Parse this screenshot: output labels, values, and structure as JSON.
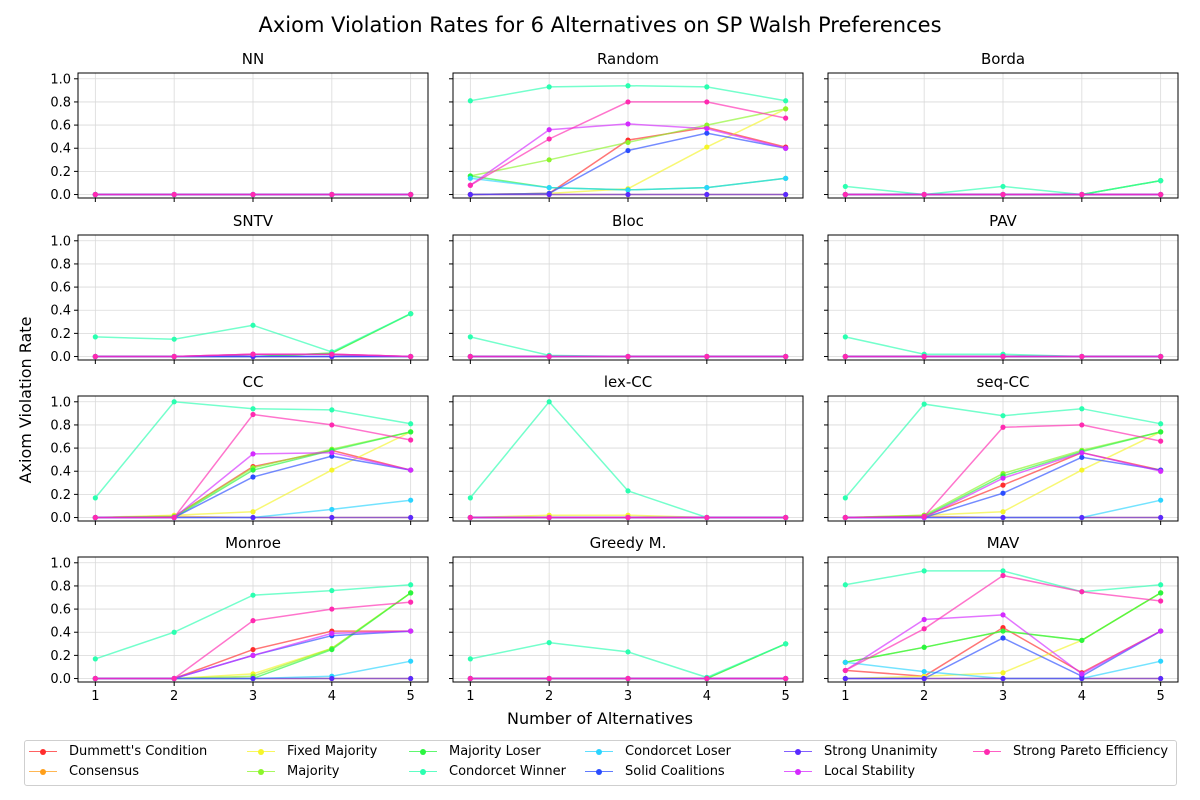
{
  "chart_data": {
    "type": "line",
    "title": "Axiom Violation Rates for 6 Alternatives on SP Walsh Preferences",
    "xlabel": "Number of Alternatives",
    "ylabel": "Axiom Violation Rate",
    "x": [
      1,
      2,
      3,
      4,
      5
    ],
    "xticks": [
      "1",
      "2",
      "3",
      "4",
      "5"
    ],
    "yticks": [
      "0.0",
      "0.2",
      "0.4",
      "0.6",
      "0.8",
      "1.0"
    ],
    "ylim": [
      -0.03,
      1.05
    ],
    "grid": true,
    "legend_position": "bottom",
    "series_meta": [
      {
        "name": "Dummett's Condition",
        "color": "#ff2d2d"
      },
      {
        "name": "Consensus",
        "color": "#ff9f1a"
      },
      {
        "name": "Fixed Majority",
        "color": "#f5f52a"
      },
      {
        "name": "Majority",
        "color": "#8cf52a"
      },
      {
        "name": "Majority Loser",
        "color": "#2af540"
      },
      {
        "name": "Condorcet Winner",
        "color": "#2affb0"
      },
      {
        "name": "Condorcet Loser",
        "color": "#2ad4ff"
      },
      {
        "name": "Solid Coalitions",
        "color": "#2a4dff"
      },
      {
        "name": "Strong Unanimity",
        "color": "#5a2aff"
      },
      {
        "name": "Local Stability",
        "color": "#d42aff"
      },
      {
        "name": "Strong Pareto Efficiency",
        "color": "#ff2ab0"
      }
    ],
    "panels": [
      {
        "title": "NN",
        "series": [
          [
            0,
            0,
            0,
            0,
            0
          ],
          [
            0,
            0,
            0,
            0,
            0
          ],
          [
            0,
            0,
            0,
            0,
            0
          ],
          [
            0,
            0,
            0,
            0,
            0
          ],
          [
            0,
            0,
            0,
            0,
            0
          ],
          [
            0,
            0,
            0,
            0,
            0
          ],
          [
            0,
            0,
            0,
            0,
            0
          ],
          [
            0,
            0,
            0,
            0,
            0
          ],
          [
            0,
            0,
            0,
            0,
            0
          ],
          [
            0,
            0,
            0,
            0,
            0
          ],
          [
            0,
            0,
            0,
            0,
            0
          ]
        ]
      },
      {
        "title": "Random",
        "series": [
          [
            0,
            0.01,
            0.47,
            0.58,
            0.41
          ],
          [
            0,
            0,
            0,
            0,
            0
          ],
          [
            0,
            0.01,
            0.05,
            0.41,
            0.74
          ],
          [
            0.16,
            0.3,
            0.45,
            0.6,
            0.74
          ],
          [
            0.16,
            0.06,
            0.04,
            0.06,
            0.14
          ],
          [
            0.81,
            0.93,
            0.94,
            0.93,
            0.81
          ],
          [
            0.14,
            0.06,
            0.04,
            0.06,
            0.14
          ],
          [
            0,
            0.01,
            0.38,
            0.53,
            0.4
          ],
          [
            0,
            0,
            0,
            0,
            0
          ],
          [
            0.08,
            0.56,
            0.61,
            0.57,
            0.4
          ],
          [
            0.08,
            0.48,
            0.8,
            0.8,
            0.66
          ]
        ]
      },
      {
        "title": "Borda",
        "series": [
          [
            0,
            0,
            0,
            0,
            0
          ],
          [
            0,
            0,
            0,
            0,
            0
          ],
          [
            0,
            0,
            0,
            0,
            0
          ],
          [
            0,
            0,
            0,
            0,
            0.12
          ],
          [
            0,
            0,
            0,
            0,
            0.12
          ],
          [
            0.07,
            0,
            0.07,
            0,
            0.12
          ],
          [
            0,
            0,
            0,
            0,
            0
          ],
          [
            0,
            0,
            0,
            0,
            0
          ],
          [
            0,
            0,
            0,
            0,
            0
          ],
          [
            0,
            0,
            0,
            0,
            0
          ],
          [
            0,
            0,
            0,
            0,
            0
          ]
        ]
      },
      {
        "title": "SNTV",
        "series": [
          [
            0,
            0,
            0.02,
            0.02,
            0
          ],
          [
            0,
            0,
            0,
            0,
            0
          ],
          [
            0,
            0,
            0,
            0,
            0
          ],
          [
            0,
            0,
            0,
            0.03,
            0.37
          ],
          [
            0,
            0,
            0,
            0.03,
            0.37
          ],
          [
            0.17,
            0.15,
            0.27,
            0.04,
            0.37
          ],
          [
            0,
            0,
            0,
            0,
            0
          ],
          [
            0,
            0,
            0,
            0,
            0
          ],
          [
            0,
            0,
            0,
            0,
            0
          ],
          [
            0,
            0,
            0.02,
            0.02,
            0
          ],
          [
            0,
            0,
            0.02,
            0.02,
            0
          ]
        ]
      },
      {
        "title": "Bloc",
        "series": [
          [
            0,
            0,
            0,
            0,
            0
          ],
          [
            0,
            0,
            0,
            0,
            0
          ],
          [
            0,
            0,
            0,
            0,
            0
          ],
          [
            0,
            0,
            0,
            0,
            0
          ],
          [
            0,
            0,
            0,
            0,
            0
          ],
          [
            0.17,
            0.01,
            0,
            0,
            0
          ],
          [
            0,
            0,
            0,
            0,
            0
          ],
          [
            0,
            0,
            0,
            0,
            0
          ],
          [
            0,
            0,
            0,
            0,
            0
          ],
          [
            0,
            0,
            0,
            0,
            0
          ],
          [
            0,
            0,
            0,
            0,
            0
          ]
        ]
      },
      {
        "title": "PAV",
        "series": [
          [
            0,
            0,
            0,
            0,
            0
          ],
          [
            0,
            0,
            0,
            0,
            0
          ],
          [
            0,
            0,
            0,
            0,
            0
          ],
          [
            0,
            0,
            0,
            0,
            0
          ],
          [
            0,
            0,
            0,
            0,
            0
          ],
          [
            0.17,
            0.02,
            0.02,
            0,
            0
          ],
          [
            0,
            0,
            0,
            0,
            0
          ],
          [
            0,
            0,
            0,
            0,
            0
          ],
          [
            0,
            0,
            0,
            0,
            0
          ],
          [
            0,
            0,
            0,
            0,
            0
          ],
          [
            0,
            0,
            0,
            0,
            0
          ]
        ]
      },
      {
        "title": "CC",
        "series": [
          [
            0,
            0.01,
            0.44,
            0.58,
            0.41
          ],
          [
            0,
            0.01,
            0,
            0,
            0
          ],
          [
            0,
            0.02,
            0.05,
            0.41,
            0.74
          ],
          [
            0,
            0.01,
            0.43,
            0.59,
            0.74
          ],
          [
            0,
            0,
            0.41,
            0.58,
            0.74
          ],
          [
            0.17,
            1.0,
            0.94,
            0.93,
            0.81
          ],
          [
            0,
            0,
            0,
            0.07,
            0.15
          ],
          [
            0,
            0,
            0.35,
            0.53,
            0.41
          ],
          [
            0,
            0,
            0,
            0,
            0
          ],
          [
            0,
            0,
            0.55,
            0.56,
            0.41
          ],
          [
            0,
            0,
            0.89,
            0.8,
            0.67
          ]
        ]
      },
      {
        "title": "lex-CC",
        "series": [
          [
            0,
            0,
            0,
            0,
            0
          ],
          [
            0,
            0,
            0,
            0,
            0
          ],
          [
            0,
            0.02,
            0.02,
            0,
            0
          ],
          [
            0,
            0,
            0,
            0,
            0
          ],
          [
            0,
            0,
            0,
            0,
            0
          ],
          [
            0.17,
            1.0,
            0.23,
            0,
            0
          ],
          [
            0,
            0,
            0,
            0,
            0
          ],
          [
            0,
            0,
            0,
            0,
            0
          ],
          [
            0,
            0,
            0,
            0,
            0
          ],
          [
            0,
            0,
            0,
            0,
            0
          ],
          [
            0,
            0,
            0,
            0,
            0
          ]
        ]
      },
      {
        "title": "seq-CC",
        "series": [
          [
            0,
            0.01,
            0.28,
            0.56,
            0.41
          ],
          [
            0,
            0.01,
            0,
            0,
            0
          ],
          [
            0,
            0.02,
            0.05,
            0.41,
            0.74
          ],
          [
            0,
            0.02,
            0.38,
            0.58,
            0.74
          ],
          [
            0,
            0.01,
            0.36,
            0.57,
            0.74
          ],
          [
            0.17,
            0.98,
            0.88,
            0.94,
            0.81
          ],
          [
            0,
            0,
            0,
            0,
            0.15
          ],
          [
            0,
            0,
            0.21,
            0.52,
            0.41
          ],
          [
            0,
            0,
            0,
            0,
            0
          ],
          [
            0,
            0,
            0.34,
            0.56,
            0.4
          ],
          [
            0,
            0.01,
            0.78,
            0.8,
            0.66
          ]
        ]
      },
      {
        "title": "Monroe",
        "series": [
          [
            0,
            0,
            0.25,
            0.41,
            0.41
          ],
          [
            0,
            0,
            0,
            0,
            0
          ],
          [
            0,
            0,
            0.04,
            0.26,
            0.74
          ],
          [
            0,
            0,
            0.02,
            0.26,
            0.74
          ],
          [
            0,
            0,
            0,
            0.25,
            0.74
          ],
          [
            0.17,
            0.4,
            0.72,
            0.76,
            0.81
          ],
          [
            0,
            0,
            0,
            0.02,
            0.15
          ],
          [
            0,
            0,
            0.2,
            0.37,
            0.41
          ],
          [
            0,
            0,
            0,
            0,
            0
          ],
          [
            0,
            0,
            0.2,
            0.39,
            0.41
          ],
          [
            0,
            0,
            0.5,
            0.6,
            0.66
          ]
        ]
      },
      {
        "title": "Greedy M.",
        "series": [
          [
            0,
            0,
            0,
            0,
            0
          ],
          [
            0,
            0,
            0,
            0,
            0
          ],
          [
            0,
            0,
            0,
            0,
            0
          ],
          [
            0,
            0,
            0,
            0,
            0.3
          ],
          [
            0,
            0,
            0,
            0,
            0.3
          ],
          [
            0.17,
            0.31,
            0.23,
            0.01,
            0.3
          ],
          [
            0,
            0,
            0,
            0,
            0
          ],
          [
            0,
            0,
            0,
            0,
            0
          ],
          [
            0,
            0,
            0,
            0,
            0
          ],
          [
            0,
            0,
            0,
            0,
            0
          ],
          [
            0,
            0,
            0,
            0,
            0
          ]
        ]
      },
      {
        "title": "MAV",
        "series": [
          [
            0.07,
            0.02,
            0.44,
            0.05,
            0.41
          ],
          [
            0,
            0,
            0,
            0,
            0
          ],
          [
            0,
            0.02,
            0.05,
            0.33,
            0.74
          ],
          [
            0.14,
            0.27,
            0.41,
            0.33,
            0.74
          ],
          [
            0.14,
            0.27,
            0.41,
            0.33,
            0.74
          ],
          [
            0.81,
            0.93,
            0.93,
            0.75,
            0.81
          ],
          [
            0.14,
            0.06,
            0,
            0,
            0.15
          ],
          [
            0,
            0,
            0.35,
            0.02,
            0.41
          ],
          [
            0,
            0,
            0,
            0,
            0
          ],
          [
            0.07,
            0.51,
            0.55,
            0.04,
            0.41
          ],
          [
            0.07,
            0.43,
            0.89,
            0.75,
            0.67
          ]
        ]
      }
    ]
  }
}
